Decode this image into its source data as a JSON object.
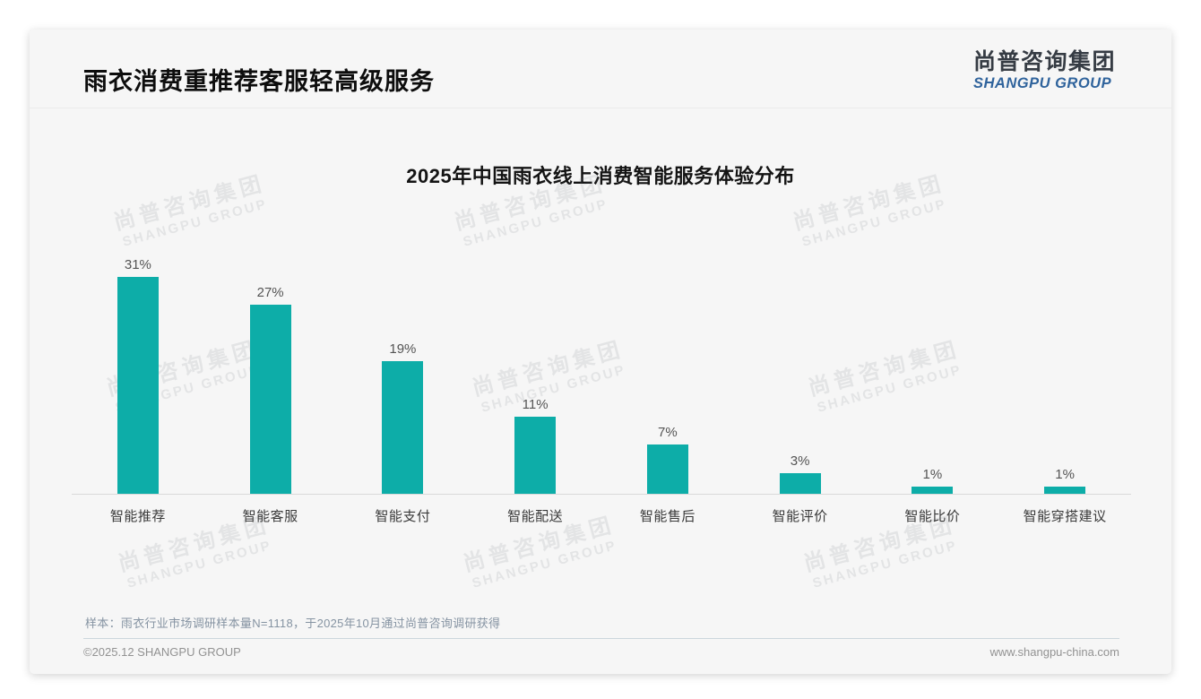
{
  "header": {
    "title": "雨衣消费重推荐客服轻高级服务"
  },
  "logo": {
    "line1": "尚普咨询集团",
    "line2": "SHANGPU GROUP"
  },
  "watermark": {
    "line1": "尚普咨询集团",
    "line2": "SHANGPU GROUP"
  },
  "chart_data": {
    "type": "bar",
    "title": "2025年中国雨衣线上消费智能服务体验分布",
    "categories": [
      "智能推荐",
      "智能客服",
      "智能支付",
      "智能配送",
      "智能售后",
      "智能评价",
      "智能比价",
      "智能穿搭建议"
    ],
    "values": [
      31,
      27,
      19,
      11,
      7,
      3,
      1,
      1
    ],
    "unit": "%",
    "ylim": [
      0,
      33
    ],
    "grid": false,
    "legend": false,
    "bar_color": "#0dada8"
  },
  "note": {
    "text": "样本：雨衣行业市场调研样本量N=1118，于2025年10月通过尚普咨询调研获得"
  },
  "footer": {
    "left": "©2025.12 SHANGPU GROUP",
    "right": "www.shangpu-china.com"
  }
}
